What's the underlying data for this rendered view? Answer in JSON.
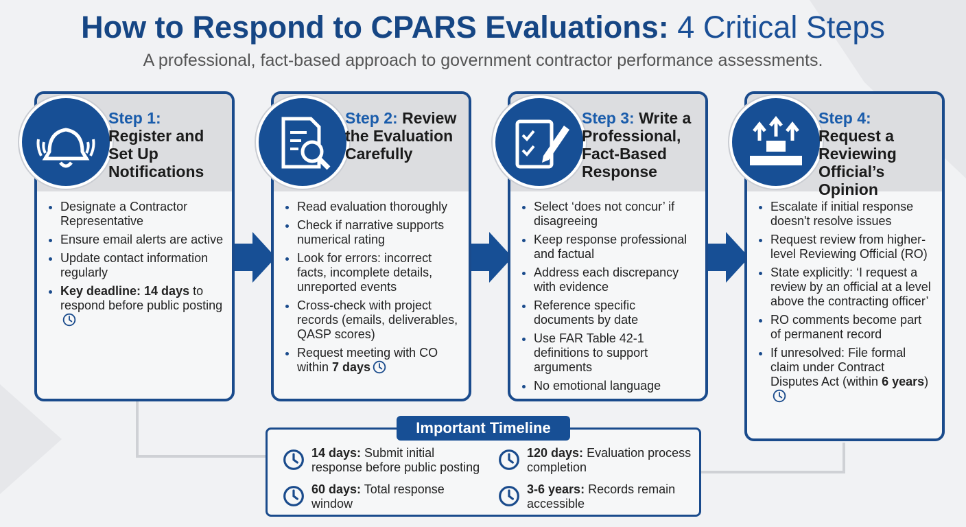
{
  "header": {
    "title": [
      {
        "text": "How to Respond to CPARS Evaluations:",
        "strong": true
      },
      {
        "text": " 4 Critical Steps"
      }
    ],
    "subtitle": "A professional, fact-based approach to government contractor performance assessments."
  },
  "steps": [
    {
      "label": "Step 1:",
      "title": "Register and Set Up Notifications",
      "bullets": [
        {
          "parts": [
            {
              "text": "Designate a Contractor Representative"
            }
          ]
        },
        {
          "parts": [
            {
              "text": "Ensure email alerts are active"
            }
          ]
        },
        {
          "parts": [
            {
              "text": "Update contact information regularly"
            }
          ]
        },
        {
          "parts": [
            {
              "text": "Key deadline: 14 days",
              "bold": true
            },
            {
              "text": " to respond before public posting"
            }
          ],
          "clock": true
        }
      ]
    },
    {
      "label": "Step 2:",
      "title": "Review the Evaluation Carefully",
      "bullets": [
        {
          "parts": [
            {
              "text": "Read evaluation thoroughly"
            }
          ]
        },
        {
          "parts": [
            {
              "text": "Check if narrative supports numerical rating"
            }
          ]
        },
        {
          "parts": [
            {
              "text": "Look for errors: incorrect facts, incomplete details, unreported events"
            }
          ]
        },
        {
          "parts": [
            {
              "text": "Cross-check with project records (emails, deliverables, QASP scores)"
            }
          ]
        },
        {
          "parts": [
            {
              "text": "Request meeting with CO within "
            },
            {
              "text": "7 days",
              "bold": true
            }
          ],
          "clock": true
        }
      ]
    },
    {
      "label": "Step 3:",
      "title": "Write a Professional, Fact-Based Response",
      "bullets": [
        {
          "parts": [
            {
              "text": "Select ‘does not concur’ if disagreeing"
            }
          ]
        },
        {
          "parts": [
            {
              "text": "Keep response professional and factual"
            }
          ]
        },
        {
          "parts": [
            {
              "text": "Address each discrepancy with evidence"
            }
          ]
        },
        {
          "parts": [
            {
              "text": "Reference specific documents by date"
            }
          ]
        },
        {
          "parts": [
            {
              "text": "Use FAR Table 42-1 definitions to support arguments"
            }
          ]
        },
        {
          "parts": [
            {
              "text": "No emotional language"
            }
          ]
        }
      ]
    },
    {
      "label": "Step 4:",
      "title": "Request a Reviewing Official’s Opinion",
      "bullets": [
        {
          "parts": [
            {
              "text": "Escalate if initial response doesn't resolve issues"
            }
          ]
        },
        {
          "parts": [
            {
              "text": "Request review from higher-level Reviewing Official (RO)"
            }
          ]
        },
        {
          "parts": [
            {
              "text": "State explicitly: ‘I request a review by an official at a level above the contracting officer’"
            }
          ]
        },
        {
          "parts": [
            {
              "text": "RO comments become part of permanent record"
            }
          ]
        },
        {
          "parts": [
            {
              "text": "If unresolved: File formal claim under Contract Disputes Act (within "
            },
            {
              "text": "6 years",
              "bold": true
            },
            {
              "text": ")"
            }
          ],
          "clock": true
        }
      ]
    }
  ],
  "timeline": {
    "title": "Important Timeline",
    "items": [
      {
        "term": "14 days:",
        "text": " Submit initial response before public posting"
      },
      {
        "term": "120 days:",
        "text": " Evaluation process completion"
      },
      {
        "term": "60 days:",
        "text": " Total response window"
      },
      {
        "term": "3-6 years:",
        "text": " Records remain accessible"
      }
    ]
  }
}
